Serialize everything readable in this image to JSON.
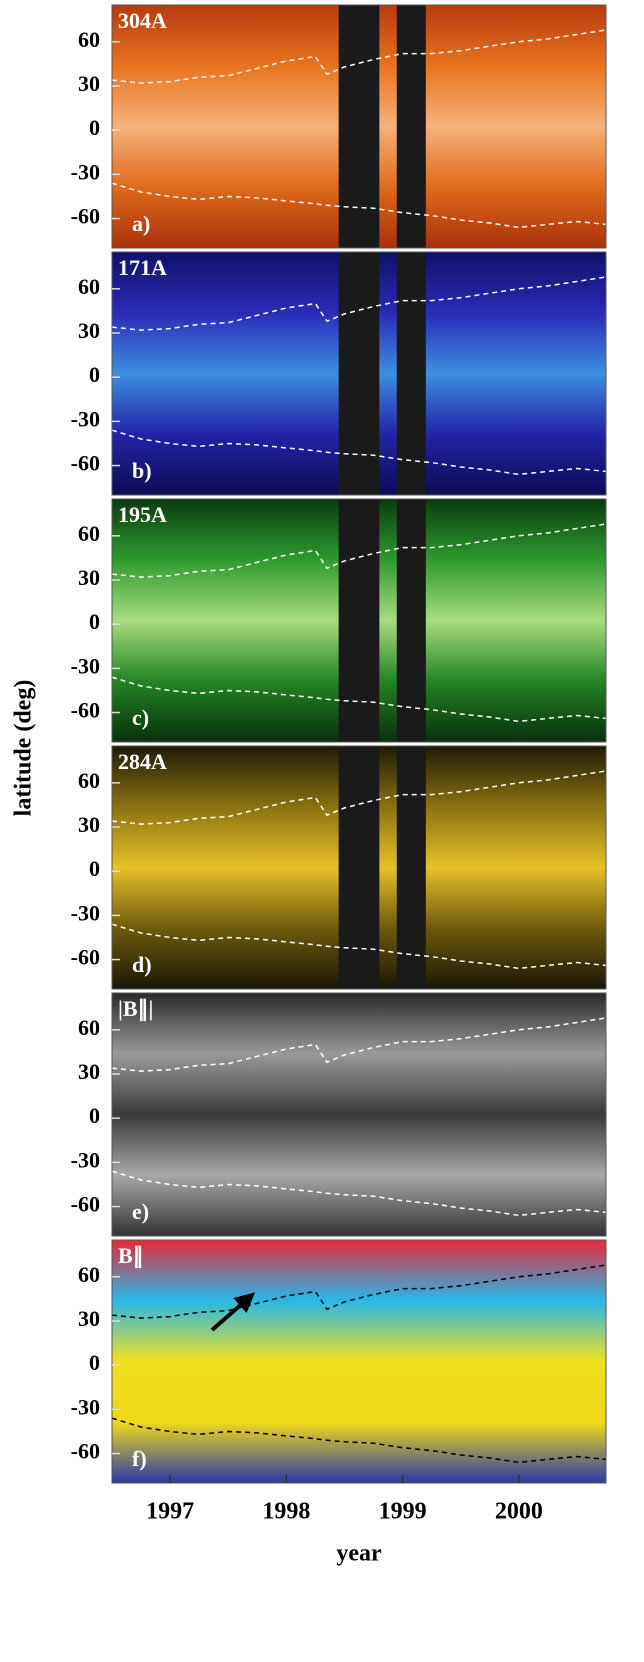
{
  "figure": {
    "ylabel": "latitude (deg)"
  },
  "chart_data": [
    {
      "type": "heatmap",
      "title": "304A",
      "panel_label": "a)",
      "colormap": [
        "#b83a10",
        "#e8731e",
        "#f6b27a",
        "#e06a1a",
        "#a9300c"
      ],
      "xlim": [
        1996.5,
        2000.75
      ],
      "ylim": [
        -80,
        85
      ],
      "yticks": [
        -60,
        -30,
        0,
        30,
        60
      ],
      "data_gaps": [
        [
          1998.45,
          1998.8
        ],
        [
          1998.95,
          1999.2
        ]
      ],
      "x": [
        1996.5,
        1996.75,
        1997,
        1997.25,
        1997.5,
        1997.75,
        1998,
        1998.25,
        1998.35,
        1998.5,
        1998.75,
        1999,
        1999.25,
        1999.5,
        1999.75,
        2000,
        2000.25,
        2000.5,
        2000.75
      ],
      "series": [
        {
          "color": "#ffffff",
          "values": [
            34,
            32,
            33,
            36,
            37,
            42,
            47,
            50,
            38,
            43,
            48,
            52,
            52,
            54,
            57,
            60,
            62,
            65,
            68
          ]
        },
        {
          "color": "#ffffff",
          "values": [
            -36,
            -42,
            -45,
            -47,
            -45,
            -46,
            -48,
            -50,
            -51,
            -52,
            -53,
            -56,
            -58,
            -61,
            -63,
            -66,
            -64,
            -62,
            -64
          ]
        }
      ]
    },
    {
      "type": "heatmap",
      "title": "171A",
      "panel_label": "b)",
      "colormap": [
        "#10106a",
        "#2a2ab8",
        "#3d8fe0",
        "#2323a8",
        "#0c0c55"
      ],
      "xlim": [
        1996.5,
        2000.75
      ],
      "ylim": [
        -80,
        85
      ],
      "yticks": [
        -60,
        -30,
        0,
        30,
        60
      ],
      "data_gaps": [
        [
          1998.45,
          1998.8
        ],
        [
          1998.95,
          1999.2
        ]
      ],
      "x": [
        1996.5,
        1996.75,
        1997,
        1997.25,
        1997.5,
        1997.75,
        1998,
        1998.25,
        1998.35,
        1998.5,
        1998.75,
        1999,
        1999.25,
        1999.5,
        1999.75,
        2000,
        2000.25,
        2000.5,
        2000.75
      ],
      "series": [
        {
          "color": "#ffffff",
          "values": [
            34,
            32,
            33,
            36,
            37,
            42,
            47,
            50,
            38,
            43,
            48,
            52,
            52,
            54,
            57,
            60,
            62,
            65,
            68
          ]
        },
        {
          "color": "#ffffff",
          "values": [
            -36,
            -42,
            -45,
            -47,
            -45,
            -46,
            -48,
            -50,
            -51,
            -52,
            -53,
            -56,
            -58,
            -61,
            -63,
            -66,
            -64,
            -62,
            -64
          ]
        }
      ]
    },
    {
      "type": "heatmap",
      "title": "195A",
      "panel_label": "c)",
      "colormap": [
        "#0a3a10",
        "#2e9a2e",
        "#a8dc80",
        "#248424",
        "#08300c"
      ],
      "xlim": [
        1996.5,
        2000.75
      ],
      "ylim": [
        -80,
        85
      ],
      "yticks": [
        -60,
        -30,
        0,
        30,
        60
      ],
      "data_gaps": [
        [
          1998.45,
          1998.8
        ],
        [
          1998.95,
          1999.2
        ]
      ],
      "x": [
        1996.5,
        1996.75,
        1997,
        1997.25,
        1997.5,
        1997.75,
        1998,
        1998.25,
        1998.35,
        1998.5,
        1998.75,
        1999,
        1999.25,
        1999.5,
        1999.75,
        2000,
        2000.25,
        2000.5,
        2000.75
      ],
      "series": [
        {
          "color": "#ffffff",
          "values": [
            34,
            32,
            33,
            36,
            37,
            42,
            47,
            50,
            38,
            43,
            48,
            52,
            52,
            54,
            57,
            60,
            62,
            65,
            68
          ]
        },
        {
          "color": "#ffffff",
          "values": [
            -36,
            -42,
            -45,
            -47,
            -45,
            -46,
            -48,
            -50,
            -51,
            -52,
            -53,
            -56,
            -58,
            -61,
            -63,
            -66,
            -64,
            -62,
            -64
          ]
        }
      ]
    },
    {
      "type": "heatmap",
      "title": "284A",
      "panel_label": "d)",
      "colormap": [
        "#1e1a08",
        "#8a7210",
        "#e8c028",
        "#6e5a0c",
        "#1a1606"
      ],
      "xlim": [
        1996.5,
        2000.75
      ],
      "ylim": [
        -80,
        85
      ],
      "yticks": [
        -60,
        -30,
        0,
        30,
        60
      ],
      "data_gaps": [
        [
          1998.45,
          1998.8
        ],
        [
          1998.95,
          1999.2
        ]
      ],
      "x": [
        1996.5,
        1996.75,
        1997,
        1997.25,
        1997.5,
        1997.75,
        1998,
        1998.25,
        1998.35,
        1998.5,
        1998.75,
        1999,
        1999.25,
        1999.5,
        1999.75,
        2000,
        2000.25,
        2000.5,
        2000.75
      ],
      "series": [
        {
          "color": "#ffffff",
          "values": [
            34,
            32,
            33,
            36,
            37,
            42,
            47,
            50,
            38,
            43,
            48,
            52,
            52,
            54,
            57,
            60,
            62,
            65,
            68
          ]
        },
        {
          "color": "#ffffff",
          "values": [
            -36,
            -42,
            -45,
            -47,
            -45,
            -46,
            -48,
            -50,
            -51,
            -52,
            -53,
            -56,
            -58,
            -61,
            -63,
            -66,
            -64,
            -62,
            -64
          ]
        }
      ]
    },
    {
      "type": "heatmap",
      "title": "|B∥|",
      "panel_label": "e)",
      "colormap": [
        "#2a2a2a",
        "#9a9a9a",
        "#3a3a3a",
        "#a8a8a8",
        "#333333"
      ],
      "xlim": [
        1996.5,
        2000.75
      ],
      "ylim": [
        -80,
        85
      ],
      "yticks": [
        -60,
        -30,
        0,
        30,
        60
      ],
      "x": [
        1996.5,
        1996.75,
        1997,
        1997.25,
        1997.5,
        1997.75,
        1998,
        1998.25,
        1998.35,
        1998.5,
        1998.75,
        1999,
        1999.25,
        1999.5,
        1999.75,
        2000,
        2000.25,
        2000.5,
        2000.75
      ],
      "series": [
        {
          "color": "#ffffff",
          "values": [
            34,
            32,
            33,
            36,
            37,
            42,
            47,
            50,
            38,
            43,
            48,
            52,
            52,
            54,
            57,
            60,
            62,
            65,
            68
          ]
        },
        {
          "color": "#ffffff",
          "values": [
            -36,
            -42,
            -45,
            -47,
            -45,
            -46,
            -48,
            -50,
            -51,
            -52,
            -53,
            -56,
            -58,
            -61,
            -63,
            -66,
            -64,
            -62,
            -64
          ]
        }
      ]
    },
    {
      "type": "heatmap",
      "title": "B∥",
      "panel_label": "f)",
      "colormap": [
        "#e8283a",
        "#28b8e8",
        "#f0e020",
        "#f0d818",
        "#2838a8"
      ],
      "xlim": [
        1996.5,
        2000.75
      ],
      "ylim": [
        -80,
        85
      ],
      "yticks": [
        -60,
        -30,
        0,
        30,
        60
      ],
      "xticks": [
        1997,
        1998,
        1999,
        2000
      ],
      "xlabel": "year",
      "x": [
        1996.5,
        1996.75,
        1997,
        1997.25,
        1997.5,
        1997.75,
        1998,
        1998.25,
        1998.35,
        1998.5,
        1998.75,
        1999,
        1999.25,
        1999.5,
        1999.75,
        2000,
        2000.25,
        2000.5,
        2000.75
      ],
      "series": [
        {
          "color": "#000000",
          "values": [
            34,
            32,
            33,
            36,
            37,
            42,
            47,
            50,
            38,
            43,
            48,
            52,
            52,
            54,
            57,
            60,
            62,
            65,
            68
          ]
        },
        {
          "color": "#000000",
          "values": [
            -36,
            -42,
            -45,
            -47,
            -45,
            -46,
            -48,
            -50,
            -51,
            -52,
            -53,
            -56,
            -58,
            -61,
            -63,
            -66,
            -64,
            -62,
            -64
          ]
        }
      ]
    }
  ]
}
